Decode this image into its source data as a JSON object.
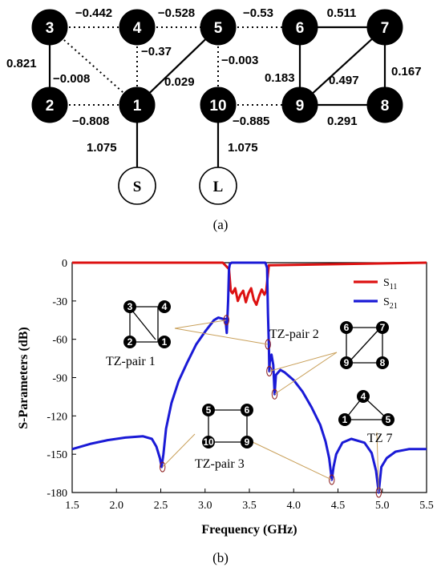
{
  "figure": {
    "caption_a": "(a)",
    "caption_b": "(b)"
  },
  "topology": {
    "nodes": [
      {
        "id": "3",
        "label": "3",
        "type": "resonator"
      },
      {
        "id": "4",
        "label": "4",
        "type": "resonator"
      },
      {
        "id": "5",
        "label": "5",
        "type": "resonator"
      },
      {
        "id": "6",
        "label": "6",
        "type": "resonator"
      },
      {
        "id": "7",
        "label": "7",
        "type": "resonator"
      },
      {
        "id": "2",
        "label": "2",
        "type": "resonator"
      },
      {
        "id": "1",
        "label": "1",
        "type": "resonator"
      },
      {
        "id": "10",
        "label": "10",
        "type": "resonator"
      },
      {
        "id": "9",
        "label": "9",
        "type": "resonator"
      },
      {
        "id": "8",
        "label": "8",
        "type": "resonator"
      },
      {
        "id": "S",
        "label": "S",
        "type": "port"
      },
      {
        "id": "L",
        "label": "L",
        "type": "port"
      }
    ],
    "couplings": [
      {
        "from": "3",
        "to": "4",
        "value": "−0.442",
        "style": "dotted"
      },
      {
        "from": "4",
        "to": "5",
        "value": "−0.528",
        "style": "dotted"
      },
      {
        "from": "5",
        "to": "6",
        "value": "−0.53",
        "style": "dotted"
      },
      {
        "from": "6",
        "to": "7",
        "value": "0.511",
        "style": "solid"
      },
      {
        "from": "3",
        "to": "2",
        "value": "0.821",
        "style": "solid"
      },
      {
        "from": "3",
        "to": "1",
        "value": "−0.008",
        "style": "dotted"
      },
      {
        "from": "4",
        "to": "1",
        "value": "−0.37",
        "style": "dotted"
      },
      {
        "from": "5",
        "to": "1",
        "value": "0.029",
        "style": "solid"
      },
      {
        "from": "5",
        "to": "10",
        "value": "−0.003",
        "style": "dotted"
      },
      {
        "from": "6",
        "to": "9",
        "value": "0.183",
        "style": "solid"
      },
      {
        "from": "7",
        "to": "9",
        "value": "0.497",
        "style": "solid"
      },
      {
        "from": "7",
        "to": "8",
        "value": "0.167",
        "style": "solid"
      },
      {
        "from": "2",
        "to": "1",
        "value": "−0.808",
        "style": "dotted"
      },
      {
        "from": "10",
        "to": "9",
        "value": "−0.885",
        "style": "dotted"
      },
      {
        "from": "9",
        "to": "8",
        "value": "0.291",
        "style": "solid"
      },
      {
        "from": "1",
        "to": "S",
        "value": "1.075",
        "style": "solid"
      },
      {
        "from": "10",
        "to": "L",
        "value": "1.075",
        "style": "solid"
      }
    ]
  },
  "chart_data": {
    "type": "line",
    "xlabel": "Frequency (GHz)",
    "ylabel": "S-Parameters (dB)",
    "xlim": [
      1.5,
      5.5
    ],
    "ylim": [
      -180,
      0
    ],
    "xticks": [
      "1.5",
      "2.0",
      "2.5",
      "3.0",
      "3.5",
      "4.0",
      "4.5",
      "5.0",
      "5.5"
    ],
    "yticks": [
      "0",
      "-30",
      "-60",
      "-90",
      "-120",
      "-150",
      "-180"
    ],
    "grid": false,
    "legend_position": "top-right",
    "series": [
      {
        "name": "S11",
        "legend_main": "S",
        "legend_sub": "11",
        "color": "#dd1111",
        "x": [
          1.5,
          3.2,
          3.27,
          3.29,
          3.31,
          3.34,
          3.37,
          3.4,
          3.43,
          3.46,
          3.49,
          3.52,
          3.55,
          3.58,
          3.61,
          3.64,
          3.67,
          3.69,
          3.72,
          5.5
        ],
        "y": [
          0,
          0,
          -5,
          -22,
          -24,
          -20,
          -30,
          -25,
          -22,
          -31,
          -24,
          -20,
          -29,
          -33,
          -26,
          -21,
          -25,
          -22,
          -2,
          0
        ]
      },
      {
        "name": "S21",
        "legend_main": "S",
        "legend_sub": "21",
        "color": "#1a1ad6",
        "x": [
          1.5,
          1.7,
          1.9,
          2.1,
          2.3,
          2.4,
          2.45,
          2.49,
          2.51,
          2.53,
          2.56,
          2.62,
          2.7,
          2.8,
          2.9,
          3.0,
          3.1,
          3.15,
          3.2,
          3.23,
          3.245,
          3.26,
          3.27,
          3.28,
          3.3,
          3.68,
          3.7,
          3.71,
          3.72,
          3.725,
          3.73,
          3.75,
          3.77,
          3.785,
          3.8,
          3.85,
          3.9,
          4.0,
          4.1,
          4.2,
          4.3,
          4.36,
          4.4,
          4.43,
          4.45,
          4.48,
          4.55,
          4.65,
          4.8,
          4.88,
          4.93,
          4.96,
          4.99,
          5.05,
          5.15,
          5.3,
          5.4,
          5.5
        ],
        "y": [
          -146,
          -142,
          -139,
          -137,
          -136,
          -138,
          -144,
          -153,
          -160,
          -150,
          -130,
          -110,
          -93,
          -78,
          -64,
          -54,
          -45,
          -43,
          -44,
          -44,
          -55,
          -30,
          -5,
          -1,
          0,
          0,
          -4,
          -40,
          -64,
          -85,
          -78,
          -72,
          -80,
          -103,
          -88,
          -84,
          -86,
          -92,
          -101,
          -113,
          -127,
          -140,
          -153,
          -170,
          -160,
          -150,
          -141,
          -138,
          -141,
          -149,
          -163,
          -180,
          -160,
          -153,
          -148,
          -146,
          -146,
          -146
        ]
      }
    ],
    "tz_markers": [
      {
        "freq": 2.52,
        "db": -160
      },
      {
        "freq": 3.24,
        "db": -45
      },
      {
        "freq": 3.71,
        "db": -64
      },
      {
        "freq": 3.725,
        "db": -85
      },
      {
        "freq": 3.785,
        "db": -103
      },
      {
        "freq": 4.43,
        "db": -170
      },
      {
        "freq": 4.96,
        "db": -180
      }
    ]
  },
  "annotations": {
    "tz_pair1": {
      "label": "TZ-pair 1",
      "nodes": [
        "3",
        "4",
        "2",
        "1"
      ]
    },
    "tz_pair2": {
      "label": "TZ-pair 2",
      "nodes": [
        "6",
        "7",
        "9",
        "8"
      ]
    },
    "tz_pair3": {
      "label": "TZ-pair 3",
      "nodes": [
        "5",
        "6",
        "10",
        "9"
      ]
    },
    "tz7": {
      "label": "TZ 7",
      "nodes": [
        "4",
        "1",
        "5"
      ]
    }
  }
}
